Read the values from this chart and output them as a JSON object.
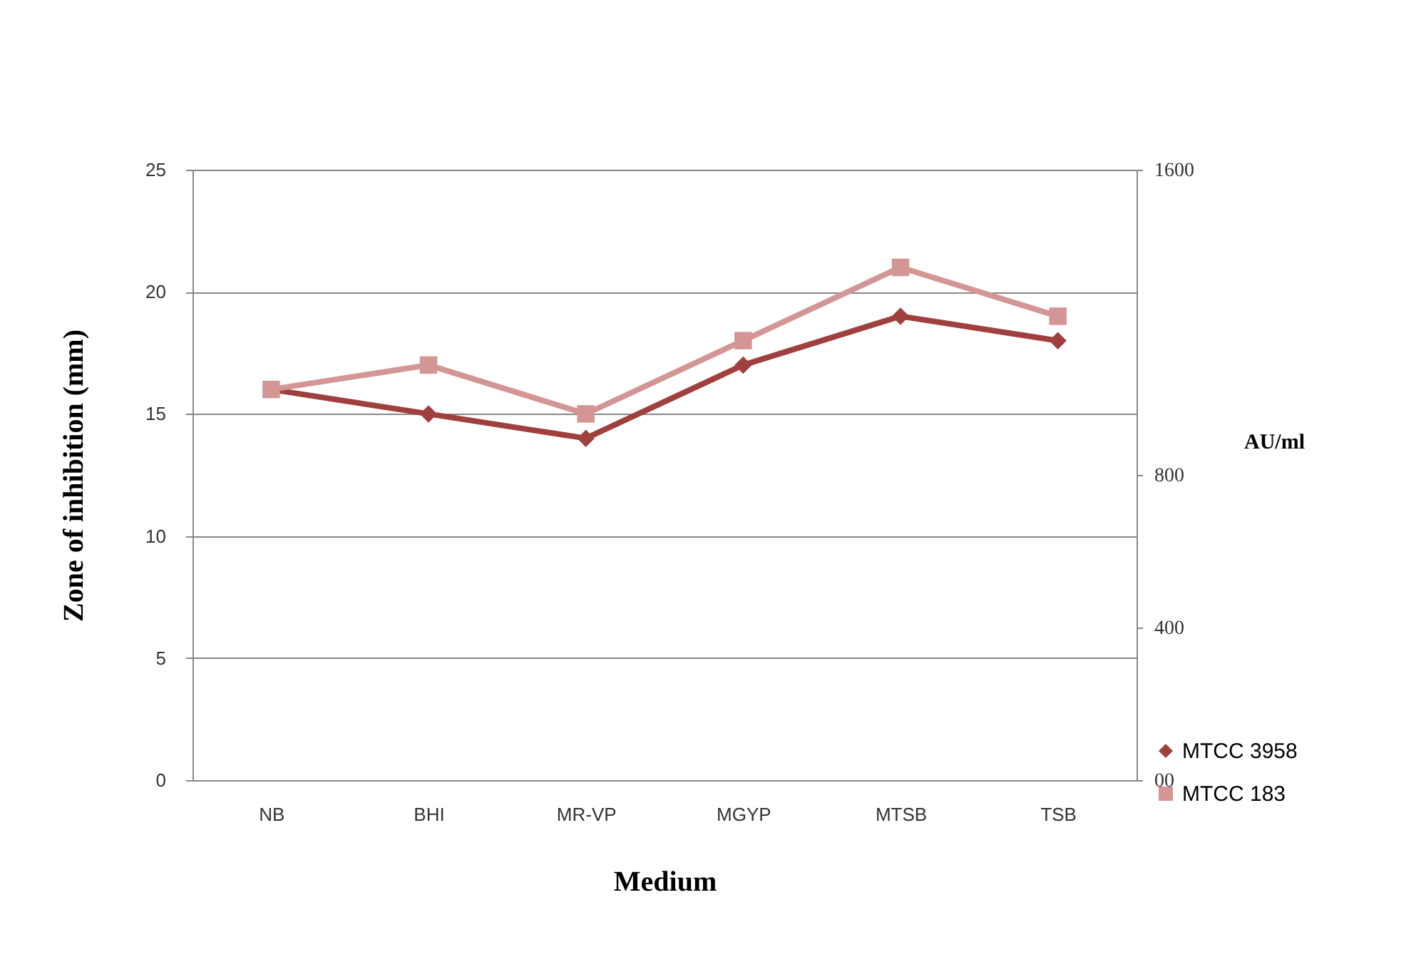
{
  "chart_data": {
    "type": "line",
    "xlabel": "Medium",
    "ylabel": "Zone of inhibition  (mm)",
    "y2label": "AU/ml",
    "categories": [
      "NB",
      "BHI",
      "MR-VP",
      "MGYP",
      "MTSB",
      "TSB"
    ],
    "series": [
      {
        "name": "MTCC 3958",
        "color": "#a0403e",
        "marker": "diamond",
        "values": [
          16,
          15,
          14,
          17,
          19,
          18
        ]
      },
      {
        "name": "MTCC 183",
        "color": "#d39695",
        "marker": "square",
        "values": [
          16,
          17,
          15,
          18,
          21,
          19
        ]
      }
    ],
    "ylim": [
      0,
      25
    ],
    "yticks": [
      0,
      5,
      10,
      15,
      20,
      25
    ],
    "y2lim": [
      0,
      1600
    ],
    "y2ticks": [
      {
        "value": 0,
        "label": "00"
      },
      400,
      800,
      1600
    ],
    "grid": "y",
    "legend": "bottom right"
  }
}
